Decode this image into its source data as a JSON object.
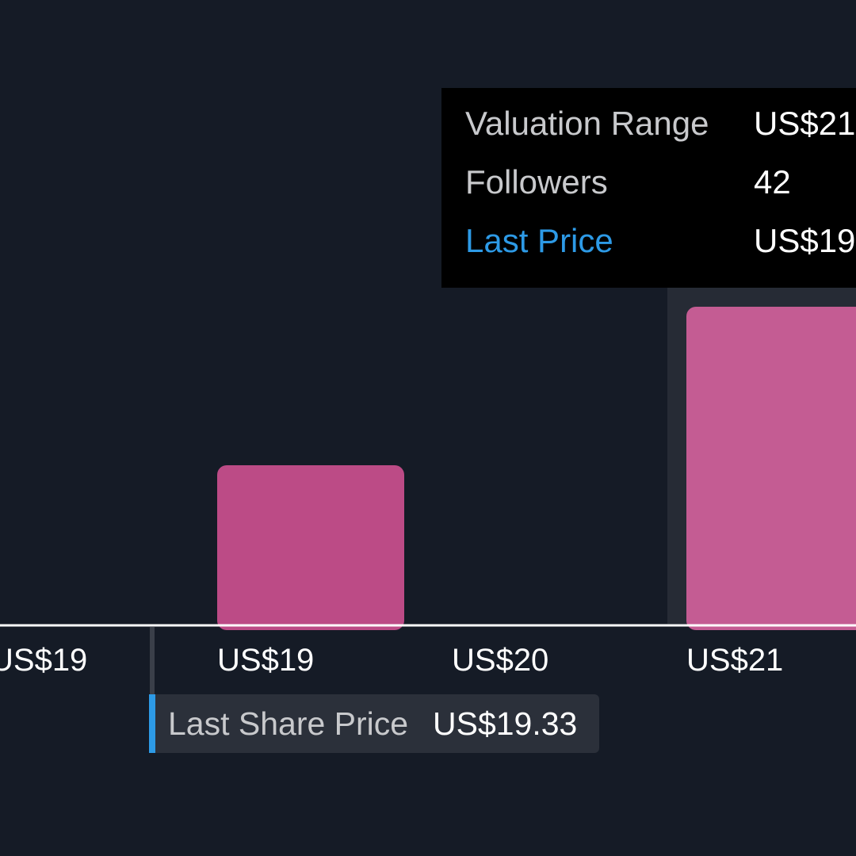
{
  "chart_data": {
    "type": "bar",
    "categories": [
      "US$19",
      "US$19",
      "US$20",
      "US$21"
    ],
    "values": [
      0,
      1,
      0,
      2
    ],
    "colors": {
      "background": "#151b26",
      "bar": "#bc4b86",
      "bar_highlight": "#c45c93",
      "highlight_band": "#262b35",
      "axis": "#ffffff",
      "last_price_marker": "#2d9ae6"
    },
    "last_price_value": 19.33,
    "highlighted_category_index": 3
  },
  "tooltip": {
    "valuation_range_label": "Valuation Range",
    "valuation_range_value": "US$21",
    "followers_label": "Followers",
    "followers_value": "42",
    "last_price_label": "Last Price",
    "last_price_value": "US$19"
  },
  "last_share_price": {
    "label": "Last Share Price",
    "value": "US$19.33"
  }
}
